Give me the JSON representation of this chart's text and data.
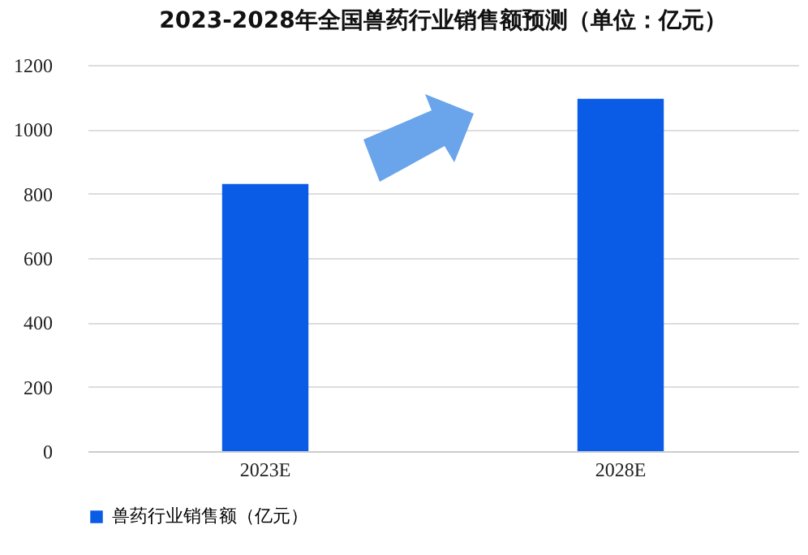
{
  "chart_data": {
    "type": "bar",
    "title": "2023-2028年全国兽药行业销售额预测（单位：亿元）",
    "categories": [
      "2023E",
      "2028E"
    ],
    "series": [
      {
        "name": "兽药行业销售额（亿元）",
        "color": "#0a5ce6",
        "values": [
          830,
          1095
        ]
      }
    ],
    "ylim": [
      0,
      1200
    ],
    "yticks": [
      0,
      200,
      400,
      600,
      800,
      1000,
      1200
    ],
    "grid": "y",
    "legend": "bottom"
  }
}
